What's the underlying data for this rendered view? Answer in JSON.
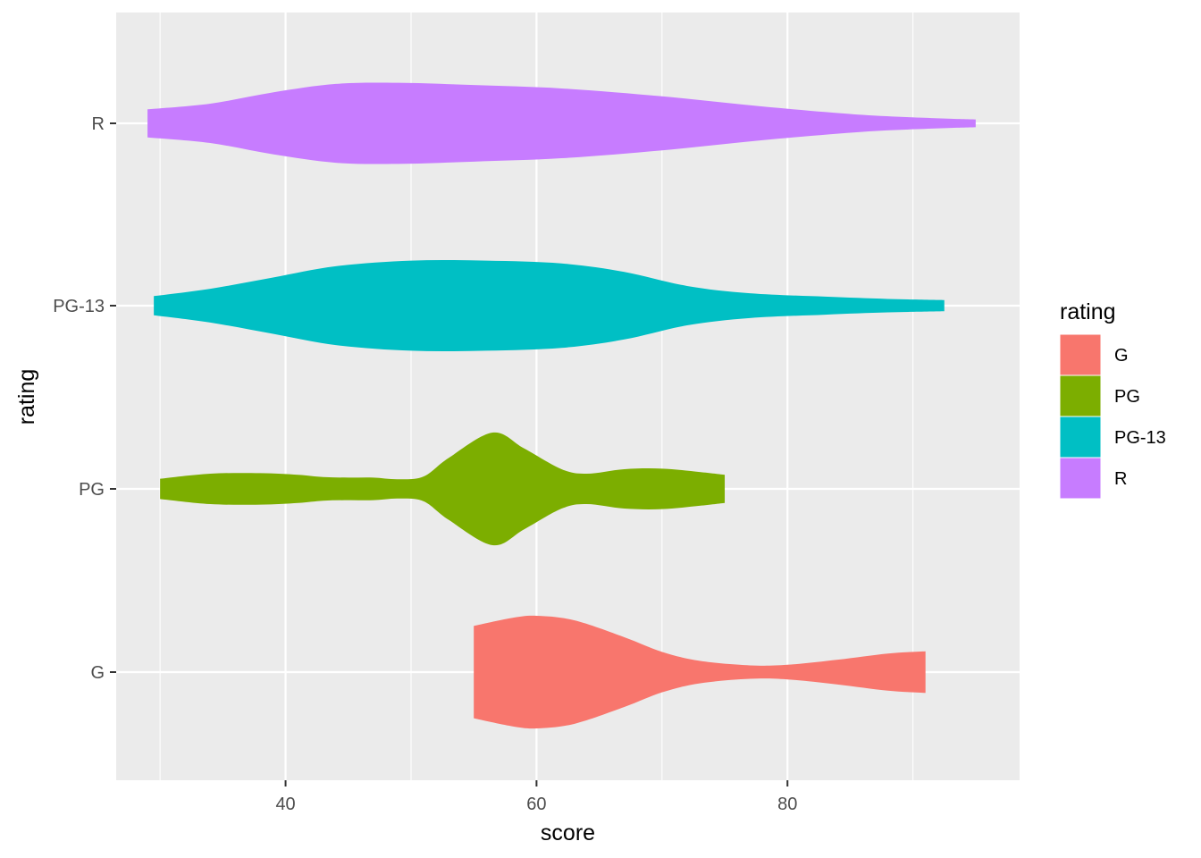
{
  "chart_data": {
    "type": "violin",
    "orientation": "horizontal",
    "xlabel": "score",
    "ylabel": "rating",
    "xlim": [
      26.5,
      98.5
    ],
    "x_ticks": [
      40,
      60,
      80
    ],
    "x_minor_ticks": [
      30,
      50,
      70,
      90
    ],
    "categories": [
      "G",
      "PG",
      "PG-13",
      "R"
    ],
    "legend": {
      "title": "rating",
      "position": "right",
      "items": [
        "G",
        "PG",
        "PG-13",
        "R"
      ]
    },
    "grid": true,
    "colors": {
      "G": "#F8766D",
      "PG": "#7CAE00",
      "PG-13": "#00BFC4",
      "R": "#C77CFF"
    },
    "series": [
      {
        "name": "G",
        "range": [
          55,
          91
        ],
        "density_profile": [
          [
            55,
            0.82
          ],
          [
            58,
            0.96
          ],
          [
            60,
            1.0
          ],
          [
            63,
            0.92
          ],
          [
            67,
            0.62
          ],
          [
            70,
            0.36
          ],
          [
            73,
            0.2
          ],
          [
            77,
            0.12
          ],
          [
            80,
            0.13
          ],
          [
            84,
            0.22
          ],
          [
            88,
            0.33
          ],
          [
            91,
            0.37
          ]
        ]
      },
      {
        "name": "PG",
        "range": [
          30,
          75
        ],
        "density_profile": [
          [
            30,
            0.18
          ],
          [
            34,
            0.27
          ],
          [
            38,
            0.28
          ],
          [
            41,
            0.25
          ],
          [
            43,
            0.21
          ],
          [
            45,
            0.2
          ],
          [
            47,
            0.2
          ],
          [
            49,
            0.17
          ],
          [
            51,
            0.22
          ],
          [
            53,
            0.55
          ],
          [
            56.5,
            1.0
          ],
          [
            59,
            0.72
          ],
          [
            62,
            0.35
          ],
          [
            64,
            0.27
          ],
          [
            67,
            0.35
          ],
          [
            70,
            0.36
          ],
          [
            73,
            0.3
          ],
          [
            75,
            0.25
          ]
        ]
      },
      {
        "name": "PG-13",
        "range": [
          29.5,
          92.5
        ],
        "density_profile": [
          [
            29.5,
            0.17
          ],
          [
            34,
            0.3
          ],
          [
            39,
            0.5
          ],
          [
            44,
            0.7
          ],
          [
            50,
            0.8
          ],
          [
            56,
            0.8
          ],
          [
            62,
            0.75
          ],
          [
            67,
            0.6
          ],
          [
            72,
            0.35
          ],
          [
            77,
            0.22
          ],
          [
            83,
            0.16
          ],
          [
            88,
            0.12
          ],
          [
            92.5,
            0.1
          ]
        ]
      },
      {
        "name": "R",
        "range": [
          29,
          95
        ],
        "density_profile": [
          [
            29,
            0.25
          ],
          [
            34,
            0.35
          ],
          [
            39,
            0.55
          ],
          [
            44,
            0.7
          ],
          [
            49,
            0.72
          ],
          [
            55,
            0.68
          ],
          [
            62,
            0.62
          ],
          [
            70,
            0.48
          ],
          [
            78,
            0.3
          ],
          [
            86,
            0.15
          ],
          [
            92,
            0.09
          ],
          [
            95,
            0.07
          ]
        ]
      }
    ]
  }
}
